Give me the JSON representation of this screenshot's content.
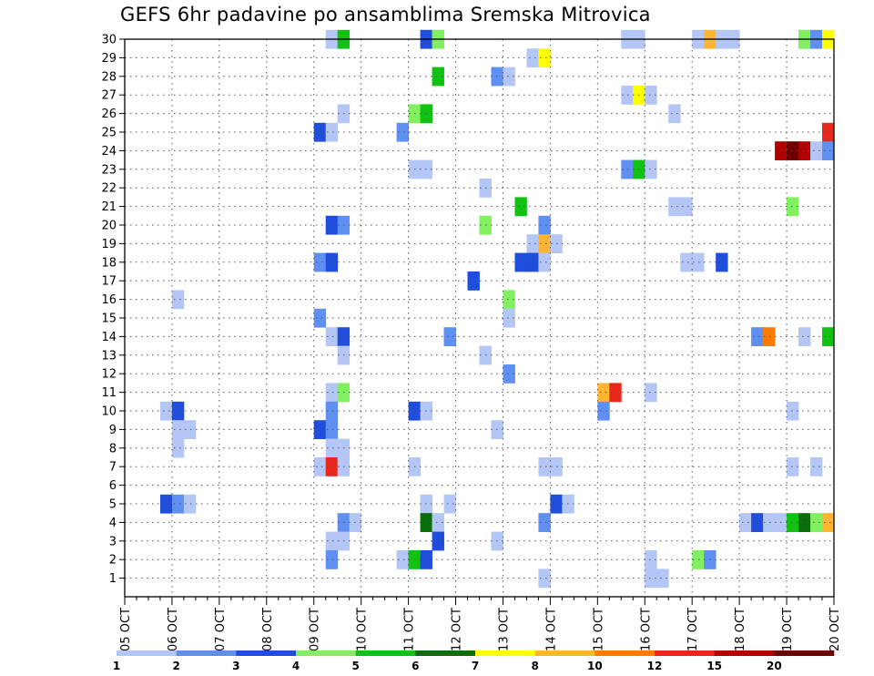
{
  "title": "GEFS 6hr padavine po ansamblima Sremska Mitrovica",
  "chart_data": {
    "type": "heatmap",
    "title": "GEFS 6hr padavine po ansamblima Sremska Mitrovica",
    "x_tick_labels": [
      "05 OCT",
      "06 OCT",
      "07 OCT",
      "08 OCT",
      "09 OCT",
      "10 OCT",
      "11 OCT",
      "12 OCT",
      "13 OCT",
      "14 OCT",
      "15 OCT",
      "16 OCT",
      "17 OCT",
      "18 OCT",
      "19 OCT",
      "20 OCT"
    ],
    "y_tick_labels": [
      "1",
      "2",
      "3",
      "4",
      "5",
      "6",
      "7",
      "8",
      "9",
      "10",
      "11",
      "12",
      "13",
      "14",
      "15",
      "16",
      "17",
      "18",
      "19",
      "20",
      "21",
      "22",
      "23",
      "24",
      "25",
      "26",
      "27",
      "28",
      "29",
      "30"
    ],
    "x_unit": "6h steps from 05 OCT 00UTC",
    "x_range": [
      0,
      60
    ],
    "y_range": [
      0,
      30
    ],
    "grid": true,
    "colorbar": {
      "placement": "bottom",
      "labels": [
        "1",
        "2",
        "3",
        "4",
        "5",
        "6",
        "7",
        "8",
        "10",
        "12",
        "15",
        "20"
      ],
      "colors": [
        "#b3c6f5",
        "#5f8ff0",
        "#1f4ddc",
        "#80f060",
        "#12c212",
        "#0a6e0a",
        "#ffff00",
        "#ffb432",
        "#ff7a00",
        "#e8281c",
        "#b00000",
        "#6e0000"
      ]
    },
    "cells": [
      [
        17,
        30,
        1
      ],
      [
        18,
        30,
        5
      ],
      [
        25,
        30,
        3
      ],
      [
        26,
        30,
        4
      ],
      [
        42,
        30,
        1
      ],
      [
        43,
        30,
        1
      ],
      [
        48,
        30,
        1
      ],
      [
        49,
        30,
        8
      ],
      [
        50,
        30,
        1
      ],
      [
        51,
        30,
        1
      ],
      [
        57,
        30,
        4
      ],
      [
        58,
        30,
        2
      ],
      [
        59,
        30,
        7
      ],
      [
        34,
        29,
        1
      ],
      [
        35,
        29,
        7
      ],
      [
        26,
        28,
        5
      ],
      [
        31,
        28,
        2
      ],
      [
        32,
        28,
        1
      ],
      [
        42,
        27,
        1
      ],
      [
        43,
        27,
        7
      ],
      [
        44,
        27,
        1
      ],
      [
        18,
        26,
        1
      ],
      [
        24,
        26,
        4
      ],
      [
        25,
        26,
        5
      ],
      [
        46,
        26,
        1
      ],
      [
        16,
        25,
        3
      ],
      [
        17,
        25,
        1
      ],
      [
        23,
        25,
        2
      ],
      [
        59,
        25,
        10
      ],
      [
        55,
        24,
        11
      ],
      [
        56,
        24,
        12
      ],
      [
        57,
        24,
        11
      ],
      [
        58,
        24,
        1
      ],
      [
        59,
        24,
        2
      ],
      [
        24,
        23,
        1
      ],
      [
        25,
        23,
        1
      ],
      [
        42,
        23,
        2
      ],
      [
        43,
        23,
        5
      ],
      [
        44,
        23,
        1
      ],
      [
        30,
        22,
        1
      ],
      [
        33,
        21,
        5
      ],
      [
        46,
        21,
        1
      ],
      [
        47,
        21,
        1
      ],
      [
        56,
        21,
        4
      ],
      [
        17,
        20,
        3
      ],
      [
        18,
        20,
        2
      ],
      [
        30,
        20,
        4
      ],
      [
        35,
        20,
        2
      ],
      [
        34,
        19,
        1
      ],
      [
        35,
        19,
        8
      ],
      [
        36,
        19,
        1
      ],
      [
        16,
        18,
        2
      ],
      [
        17,
        18,
        3
      ],
      [
        33,
        18,
        3
      ],
      [
        34,
        18,
        3
      ],
      [
        35,
        18,
        1
      ],
      [
        47,
        18,
        1
      ],
      [
        48,
        18,
        1
      ],
      [
        50,
        18,
        3
      ],
      [
        29,
        17,
        3
      ],
      [
        4,
        16,
        1
      ],
      [
        32,
        16,
        4
      ],
      [
        16,
        15,
        2
      ],
      [
        32,
        15,
        1
      ],
      [
        17,
        14,
        1
      ],
      [
        18,
        14,
        3
      ],
      [
        27,
        14,
        2
      ],
      [
        53,
        14,
        2
      ],
      [
        54,
        14,
        9
      ],
      [
        57,
        14,
        1
      ],
      [
        59,
        14,
        5
      ],
      [
        18,
        13,
        1
      ],
      [
        30,
        13,
        1
      ],
      [
        32,
        12,
        2
      ],
      [
        17,
        11,
        1
      ],
      [
        18,
        11,
        4
      ],
      [
        40,
        11,
        8
      ],
      [
        41,
        11,
        10
      ],
      [
        44,
        11,
        1
      ],
      [
        3,
        10,
        1
      ],
      [
        4,
        10,
        3
      ],
      [
        17,
        10,
        2
      ],
      [
        24,
        10,
        3
      ],
      [
        25,
        10,
        1
      ],
      [
        40,
        10,
        2
      ],
      [
        56,
        10,
        1
      ],
      [
        4,
        9,
        1
      ],
      [
        5,
        9,
        1
      ],
      [
        16,
        9,
        3
      ],
      [
        17,
        9,
        2
      ],
      [
        31,
        9,
        1
      ],
      [
        4,
        8,
        1
      ],
      [
        17,
        8,
        1
      ],
      [
        18,
        8,
        1
      ],
      [
        16,
        7,
        1
      ],
      [
        17,
        7,
        10
      ],
      [
        18,
        7,
        1
      ],
      [
        24,
        7,
        1
      ],
      [
        35,
        7,
        1
      ],
      [
        36,
        7,
        1
      ],
      [
        56,
        7,
        1
      ],
      [
        58,
        7,
        1
      ],
      [
        3,
        5,
        3
      ],
      [
        4,
        5,
        2
      ],
      [
        5,
        5,
        1
      ],
      [
        25,
        5,
        1
      ],
      [
        27,
        5,
        1
      ],
      [
        36,
        5,
        3
      ],
      [
        37,
        5,
        1
      ],
      [
        18,
        4,
        2
      ],
      [
        19,
        4,
        1
      ],
      [
        25,
        4,
        6
      ],
      [
        26,
        4,
        1
      ],
      [
        35,
        4,
        2
      ],
      [
        52,
        4,
        1
      ],
      [
        53,
        4,
        3
      ],
      [
        54,
        4,
        1
      ],
      [
        55,
        4,
        1
      ],
      [
        56,
        4,
        5
      ],
      [
        57,
        4,
        6
      ],
      [
        58,
        4,
        4
      ],
      [
        59,
        4,
        8
      ],
      [
        17,
        3,
        1
      ],
      [
        18,
        3,
        1
      ],
      [
        26,
        3,
        3
      ],
      [
        31,
        3,
        1
      ],
      [
        17,
        2,
        2
      ],
      [
        23,
        2,
        1
      ],
      [
        24,
        2,
        5
      ],
      [
        25,
        2,
        3
      ],
      [
        44,
        2,
        1
      ],
      [
        48,
        2,
        4
      ],
      [
        49,
        2,
        2
      ],
      [
        35,
        1,
        1
      ],
      [
        44,
        1,
        1
      ],
      [
        45,
        1,
        1
      ]
    ]
  }
}
